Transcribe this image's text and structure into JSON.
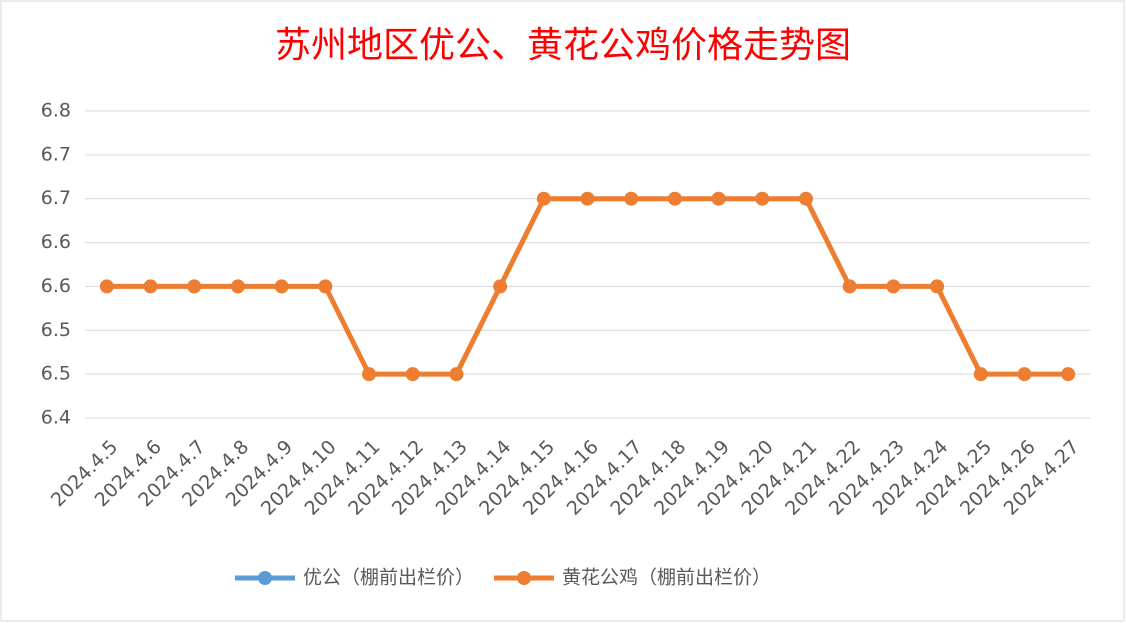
{
  "chart_data": {
    "type": "line",
    "title": "苏州地区优公、黄花公鸡价格走势图",
    "categories": [
      "2024.4.5",
      "2024.4.6",
      "2024.4.7",
      "2024.4.8",
      "2024.4.9",
      "2024.4.10",
      "2024.4.11",
      "2024.4.12",
      "2024.4.13",
      "2024.4.14",
      "2024.4.15",
      "2024.4.16",
      "2024.4.17",
      "2024.4.18",
      "2024.4.19",
      "2024.4.20",
      "2024.4.21",
      "2024.4.22",
      "2024.4.23",
      "2024.4.24",
      "2024.4.25",
      "2024.4.26",
      "2024.4.27"
    ],
    "series": [
      {
        "name": "优公（棚前出栏价）",
        "color": "#5b9bd5",
        "values": [
          null,
          null,
          null,
          null,
          null,
          null,
          null,
          null,
          null,
          null,
          null,
          null,
          null,
          null,
          null,
          null,
          null,
          null,
          null,
          null,
          null,
          null,
          null
        ]
      },
      {
        "name": "黄花公鸡（棚前出栏价）",
        "color": "#ed7d31",
        "values": [
          6.55,
          6.55,
          6.55,
          6.55,
          6.55,
          6.55,
          6.45,
          6.45,
          6.45,
          6.55,
          6.65,
          6.65,
          6.65,
          6.65,
          6.65,
          6.65,
          6.65,
          6.55,
          6.55,
          6.55,
          6.45,
          6.45,
          6.45
        ]
      }
    ],
    "ylim": [
      6.4,
      6.75
    ],
    "yticks": [
      6.4,
      {
        "value": 6.45,
        "label": "6.5"
      },
      6.5,
      {
        "value": 6.55,
        "label": "6.6"
      },
      6.6,
      {
        "value": 6.65,
        "label": "6.7"
      },
      6.7,
      {
        "value": 6.75,
        "label": "6.8"
      }
    ],
    "grid": true
  }
}
